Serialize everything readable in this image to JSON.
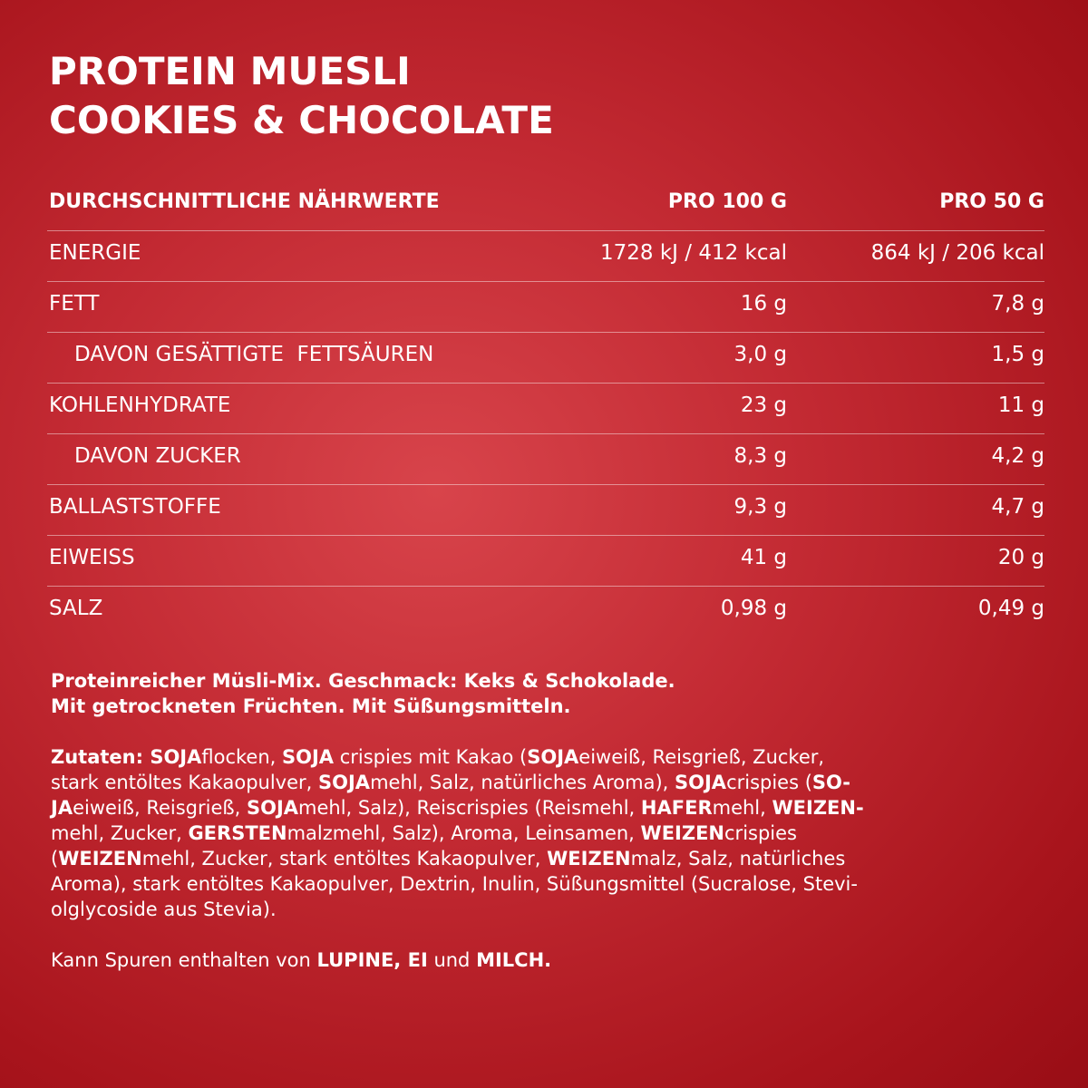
{
  "header": {
    "title_lines": [
      "PROTEIN MUESLI",
      "COOKIES & CHOCOLATE"
    ]
  },
  "table": {
    "header": [
      "DURCHSCHNITTLICHE NÄHRWERTE",
      "PRO 100 G",
      "PRO 50 G"
    ],
    "rows": [
      {
        "cells": [
          "ENERGIE",
          "1728 kJ / 412 kcal",
          "864 kJ / 206 kcal"
        ],
        "indent": false
      },
      {
        "cells": [
          "FETT",
          "16 g",
          "7,8 g"
        ],
        "indent": false
      },
      {
        "cells": [
          "DAVON GESÄTTIGTE  FETTSÄUREN",
          "3,0 g",
          "1,5 g"
        ],
        "indent": true
      },
      {
        "cells": [
          "KOHLENHYDRATE",
          "23 g",
          "11 g"
        ],
        "indent": false
      },
      {
        "cells": [
          "DAVON ZUCKER",
          "8,3 g",
          "4,2 g"
        ],
        "indent": true
      },
      {
        "cells": [
          "BALLASTSTOFFE",
          "9,3 g",
          "4,7 g"
        ],
        "indent": false
      },
      {
        "cells": [
          "EIWEISS",
          "41 g",
          "20 g"
        ],
        "indent": false
      },
      {
        "cells": [
          "SALZ",
          "0,98 g",
          "0,49 g"
        ],
        "indent": false
      }
    ]
  },
  "description": {
    "lines": [
      "Proteinreicher Müsli-Mix. Geschmack: Keks & Schokolade.",
      "Mit getrockneten Früchten. Mit Süßungsmitteln."
    ]
  },
  "ingredients": {
    "lines": [
      [
        {
          "text": "Zutaten: SOJA",
          "bold": true
        },
        {
          "text": "flocken, ",
          "bold": false
        },
        {
          "text": "SOJA",
          "bold": true
        },
        {
          "text": " crispies mit Kakao (",
          "bold": false
        },
        {
          "text": "SOJA",
          "bold": true
        },
        {
          "text": "eiweiß, Reisgrieß, Zucker,",
          "bold": false
        }
      ],
      [
        {
          "text": "stark entöltes Kakaopulver, ",
          "bold": false
        },
        {
          "text": "SOJA",
          "bold": true
        },
        {
          "text": "mehl, Salz, natürliches Aroma), ",
          "bold": false
        },
        {
          "text": "SOJA",
          "bold": true
        },
        {
          "text": "crispies (",
          "bold": false
        },
        {
          "text": "SO-",
          "bold": true
        }
      ],
      [
        {
          "text": "JA",
          "bold": true
        },
        {
          "text": "eiweiß, Reisgrieß, ",
          "bold": false
        },
        {
          "text": "SOJA",
          "bold": true
        },
        {
          "text": "mehl, Salz), Reiscrispies (Reismehl, ",
          "bold": false
        },
        {
          "text": "HAFER",
          "bold": true
        },
        {
          "text": "mehl, ",
          "bold": false
        },
        {
          "text": "WEIZEN-",
          "bold": true
        }
      ],
      [
        {
          "text": "mehl, Zucker, ",
          "bold": false
        },
        {
          "text": "GERSTEN",
          "bold": true
        },
        {
          "text": "malzmehl, Salz), Aroma, Leinsamen, ",
          "bold": false
        },
        {
          "text": "WEIZEN",
          "bold": true
        },
        {
          "text": "crispies",
          "bold": false
        }
      ],
      [
        {
          "text": "(",
          "bold": false
        },
        {
          "text": "WEIZEN",
          "bold": true
        },
        {
          "text": "mehl, Zucker, stark entöltes Kakaopulver, ",
          "bold": false
        },
        {
          "text": "WEIZEN",
          "bold": true
        },
        {
          "text": "malz, Salz, natürliches",
          "bold": false
        }
      ],
      [
        {
          "text": "Aroma), stark entöltes Kakaopulver, Dextrin, Inulin, Süßungsmittel (Sucralose, Stevi-",
          "bold": false
        }
      ],
      [
        {
          "text": "olglycoside aus Stevia).",
          "bold": false
        }
      ]
    ]
  },
  "allergens": {
    "segments": [
      {
        "text": "Kann Spuren enthalten von ",
        "bold": false
      },
      {
        "text": "LUPINE, EI",
        "bold": true
      },
      {
        "text": " und ",
        "bold": false
      },
      {
        "text": "MILCH.",
        "bold": true
      }
    ]
  }
}
